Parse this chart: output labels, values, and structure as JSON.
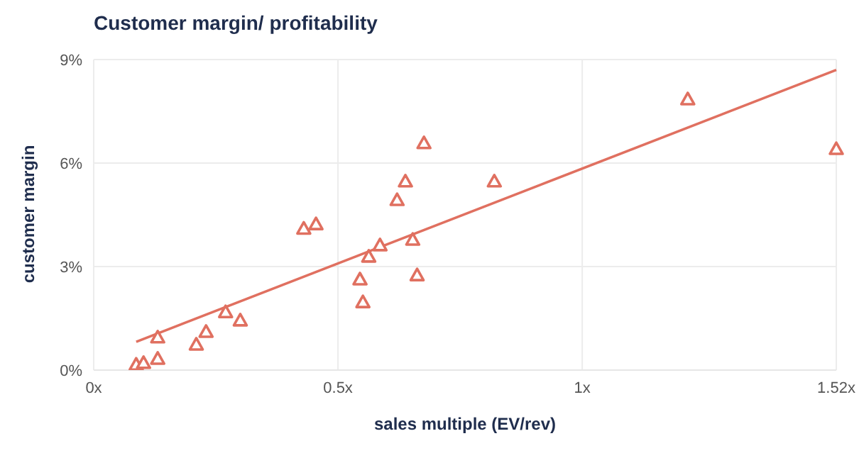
{
  "chart_data": {
    "type": "scatter",
    "title": "Customer margin/ profitability",
    "xlabel": "sales multiple (EV/rev)",
    "ylabel": "customer margin",
    "xlim": [
      0,
      1.52
    ],
    "xticks": [
      {
        "value": 0,
        "label": "0x"
      },
      {
        "value": 0.5,
        "label": "0.5x"
      },
      {
        "value": 1,
        "label": "1x"
      },
      {
        "value": 1.52,
        "label": "1.52x"
      }
    ],
    "ylim": [
      0,
      9
    ],
    "yticks": [
      {
        "value": 0,
        "label": "0%"
      },
      {
        "value": 3,
        "label": "3%"
      },
      {
        "value": 6,
        "label": "6%"
      },
      {
        "value": 9,
        "label": "9%"
      }
    ],
    "grid": true,
    "series": [
      {
        "color": "#e07060",
        "marker": "triangle",
        "x": [
          0.087,
          0.102,
          0.131,
          0.131,
          0.21,
          0.23,
          0.27,
          0.3,
          0.43,
          0.455,
          0.545,
          0.551,
          0.563,
          0.586,
          0.621,
          0.638,
          0.653,
          0.662,
          0.676,
          0.82,
          1.216,
          1.52
        ],
        "values": [
          0.16,
          0.21,
          0.95,
          0.33,
          0.74,
          1.11,
          1.68,
          1.44,
          4.1,
          4.23,
          2.63,
          1.97,
          3.29,
          3.62,
          4.93,
          5.47,
          3.78,
          2.75,
          6.58,
          5.47,
          7.85,
          6.41
        ]
      },
      {
        "type": "line",
        "marker": "none",
        "color": "#e07060",
        "x": [
          0.087,
          1.52
        ],
        "values": [
          0.82,
          8.7
        ]
      }
    ]
  }
}
